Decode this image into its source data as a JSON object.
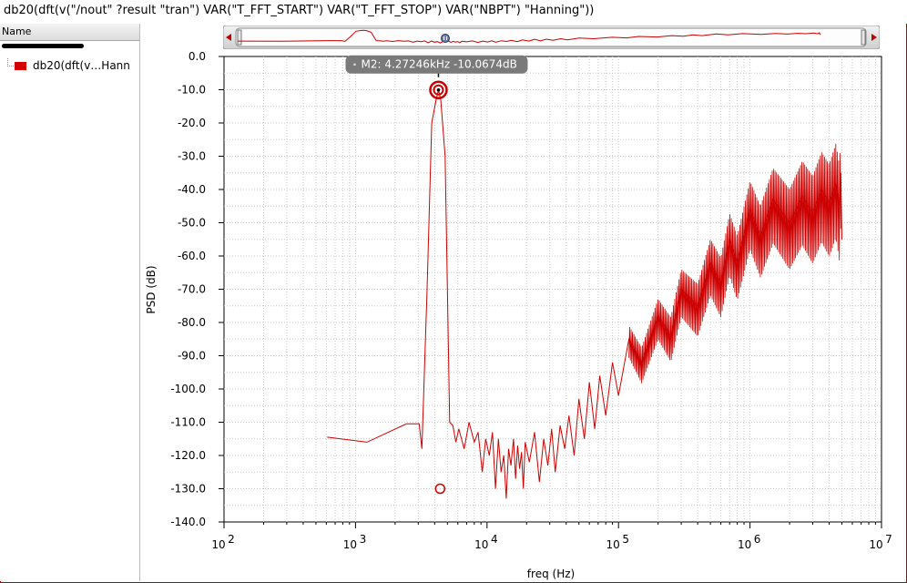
{
  "window": {
    "expression": "db20(dft(v(\"/nout\" ?result \"tran\") VAR(\"T_FFT_START\") VAR(\"T_FFT_STOP\") VAR(\"NBPT\") \"Hanning\"))"
  },
  "legend": {
    "header": "Name",
    "trace_label": "db20(dft(v…Hann",
    "trace_color": "#d40000"
  },
  "marker": {
    "label": "M2: 4.27246kHz -10.0674dB",
    "x": 4272.46,
    "y": -10.0674
  },
  "colors": {
    "trace": "#cc0000",
    "grid": "#c8c8c8",
    "marker_box": "#7a7a7a",
    "frame": "#c00000"
  },
  "chart_data": {
    "type": "line",
    "xlabel": "freq (Hz)",
    "ylabel": "PSD (dB)",
    "xscale": "log",
    "xlim": [
      100,
      10000000
    ],
    "ylim": [
      -140,
      0
    ],
    "grid": true,
    "x_tick_labels": [
      {
        "base": "10",
        "exp": "2",
        "value": 100
      },
      {
        "base": "10",
        "exp": "3",
        "value": 1000
      },
      {
        "base": "10",
        "exp": "4",
        "value": 10000
      },
      {
        "base": "10",
        "exp": "5",
        "value": 100000
      },
      {
        "base": "10",
        "exp": "6",
        "value": 1000000
      },
      {
        "base": "10",
        "exp": "7",
        "value": 10000000
      }
    ],
    "y_ticks": [
      0,
      -10,
      -20,
      -30,
      -40,
      -50,
      -60,
      -70,
      -80,
      -90,
      -100,
      -110,
      -120,
      -130,
      -140
    ],
    "y_tick_labels": [
      "0.0",
      "-10.0",
      "-20.0",
      "-30.0",
      "-40.0",
      "-50.0",
      "-60.0",
      "-70.0",
      "-80.0",
      "-90.0",
      "-100.0",
      "-110.0",
      "-120.0",
      "-130.0",
      "-140.0"
    ],
    "series": [
      {
        "color": "#cc0000",
        "x": [
          610,
          1220,
          2440,
          3050,
          3200,
          3500,
          3800,
          4100,
          4272,
          4450,
          4800,
          5200,
          5500,
          5800,
          6100,
          6700,
          7300,
          8000,
          8550,
          9200,
          9760,
          10400,
          11000,
          11600,
          12200,
          12800,
          13400,
          14000,
          14600,
          15200,
          15900,
          16500,
          17100,
          17700,
          18300,
          18900,
          19500,
          21000,
          23000,
          25000,
          27000,
          29000,
          31000,
          33000,
          36000,
          39000,
          42000,
          46000,
          50000,
          55000,
          60000,
          66000,
          72000,
          80000,
          90000,
          100000,
          120000,
          150000,
          200000,
          250000,
          300000,
          400000,
          500000,
          600000,
          700000,
          800000,
          1000000,
          1200000,
          1500000,
          2000000,
          2500000,
          3000000,
          3500000,
          4000000,
          4500000,
          4800000,
          4900000,
          5000000
        ],
        "y": [
          -114.5,
          -116,
          -110.5,
          -110.5,
          -118,
          -70,
          -20,
          -13,
          -10.1,
          -13,
          -30,
          -110,
          -111,
          -116,
          -112,
          -118,
          -110,
          -116,
          -113,
          -125,
          -115,
          -120,
          -113,
          -130,
          -115,
          -125,
          -120,
          -133,
          -118,
          -123,
          -115,
          -127,
          -117,
          -124,
          -119,
          -130,
          -116,
          -122,
          -113,
          -128,
          -115,
          -123,
          -112,
          -125,
          -111,
          -118,
          -108,
          -120,
          -103,
          -115,
          -98,
          -112,
          -96,
          -108,
          -92,
          -102,
          -85,
          -92,
          -78,
          -84,
          -70,
          -75,
          -62,
          -68,
          -55,
          -62,
          -46,
          -54,
          -43,
          -50,
          -42,
          -47,
          -40,
          -44,
          -38,
          -45,
          -35,
          -55
        ]
      }
    ]
  }
}
